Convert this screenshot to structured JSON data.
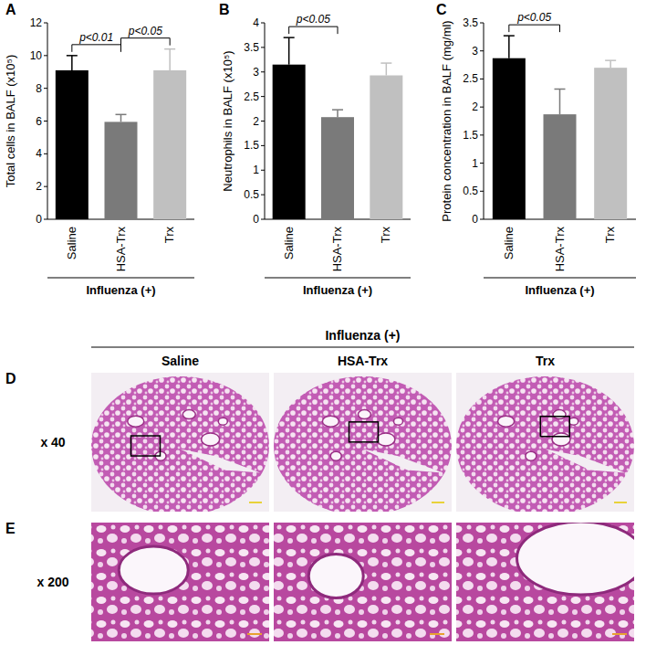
{
  "chart_data": [
    {
      "type": "bar",
      "panel_label": "A",
      "categories": [
        "Saline",
        "HSA-Trx",
        "Trx"
      ],
      "values": [
        9.1,
        5.95,
        9.1
      ],
      "errors": [
        0.9,
        0.45,
        1.3
      ],
      "colors": [
        "#000000",
        "#7a7a7a",
        "#c0c0c0"
      ],
      "ylabel": "Total cells in BALF (x10⁵)",
      "xlabel": "Influenza (+)",
      "ylim": [
        0,
        12
      ],
      "yticks": [
        0,
        2,
        4,
        6,
        8,
        10,
        12
      ],
      "annotations": [
        {
          "text": "p<0.01",
          "from": 0,
          "to": 1
        },
        {
          "text": "p<0.05",
          "from": 1,
          "to": 2
        }
      ]
    },
    {
      "type": "bar",
      "panel_label": "B",
      "categories": [
        "Saline",
        "HSA-Trx",
        "Trx"
      ],
      "values": [
        3.15,
        2.08,
        2.93
      ],
      "errors": [
        0.55,
        0.15,
        0.25
      ],
      "colors": [
        "#000000",
        "#7a7a7a",
        "#c0c0c0"
      ],
      "ylabel": "Neutrophils in BALF (x10⁵)",
      "xlabel": "Influenza (+)",
      "ylim": [
        0,
        4
      ],
      "yticks": [
        0,
        0.5,
        1,
        1.5,
        2,
        2.5,
        3,
        3.5,
        4
      ],
      "annotations": [
        {
          "text": "p<0.05",
          "from": 0,
          "to": 1
        }
      ]
    },
    {
      "type": "bar",
      "panel_label": "C",
      "categories": [
        "Saline",
        "HSA-Trx",
        "Trx"
      ],
      "values": [
        2.87,
        1.87,
        2.7
      ],
      "errors": [
        0.4,
        0.45,
        0.13
      ],
      "colors": [
        "#000000",
        "#7a7a7a",
        "#c0c0c0"
      ],
      "ylabel": "Protein concentration in BALF (mg/ml)",
      "xlabel": "Influenza (+)",
      "ylim": [
        0,
        3.5
      ],
      "yticks": [
        0,
        0.5,
        1,
        1.5,
        2,
        2.5,
        3,
        3.5
      ],
      "annotations": [
        {
          "text": "p<0.05",
          "from": 0,
          "to": 1
        }
      ]
    }
  ],
  "histology": {
    "header": "Influenza (+)",
    "columns": [
      "Saline",
      "HSA-Trx",
      "Trx"
    ],
    "rows": [
      {
        "panel_label": "D",
        "magnification": "x 40"
      },
      {
        "panel_label": "E",
        "magnification": "x 200"
      }
    ]
  }
}
